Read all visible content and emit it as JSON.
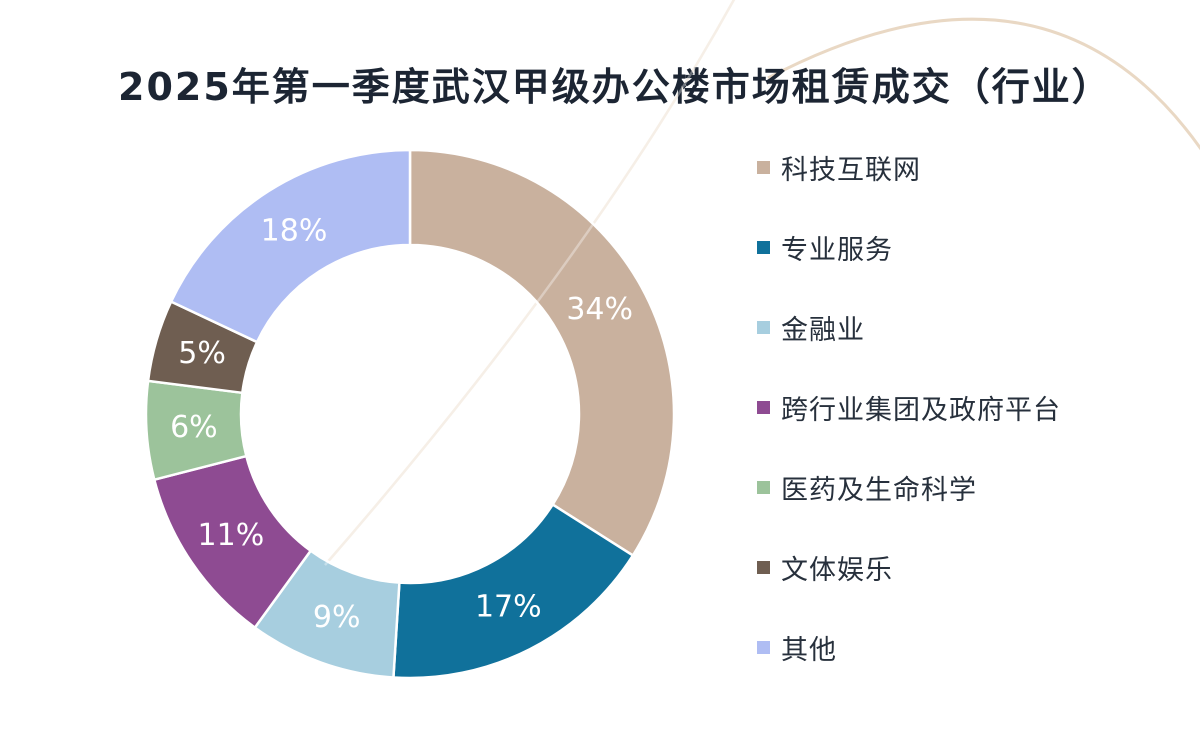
{
  "page": {
    "background_color": "#ffffff",
    "title_color": "#1C2533"
  },
  "title": "2025年第一季度武汉甲级办公楼市场租赁成交（行业）",
  "chart_data": {
    "type": "pie",
    "subtype": "donut",
    "title": "2025年第一季度武汉甲级办公楼市场租赁成交（行业）",
    "unit": "%",
    "start_angle_deg": 0,
    "direction": "clockwise",
    "inner_radius_ratio": 0.64,
    "legend_position": "right",
    "categories": [
      "科技互联网",
      "专业服务",
      "金融业",
      "跨行业集团及政府平台",
      "医药及生命科学",
      "文体娱乐",
      "其他"
    ],
    "values": [
      34,
      17,
      9,
      11,
      6,
      5,
      18
    ],
    "labels": [
      "34%",
      "17%",
      "9%",
      "11%",
      "6%",
      "5%",
      "18%"
    ],
    "colors": [
      "#C9B19E",
      "#10719B",
      "#A7CEDF",
      "#8E4B92",
      "#9CC39B",
      "#6F5E51",
      "#AFBDF3"
    ],
    "slice_label_color": "#FFFFFF",
    "slice_gap_color": "#FFFFFF"
  },
  "legend": {
    "text_color": "#27303C"
  },
  "decor": {
    "corner_arc_color": "#E9D8C4",
    "diagonal_line_color": "#F1E7DB",
    "highlight_line_color": "rgba(255,255,255,0.35)"
  }
}
